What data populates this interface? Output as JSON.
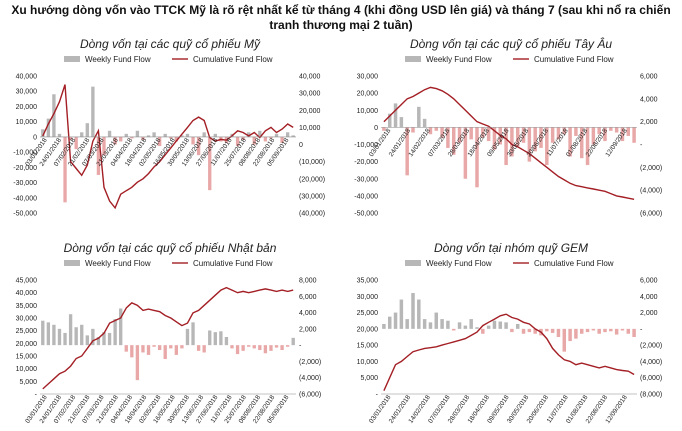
{
  "headline": {
    "line1": "Xu hướng dòng vốn vào TTCK Mỹ là rõ rệt nhất kể từ tháng 4 (khi đồng USD lên giá) và tháng 7 (sau khi nổ ra chiến",
    "line2": "tranh thương mại 2 tuần)"
  },
  "colors": {
    "bar": "#b7b7b7",
    "bar_neg": "#e9a8a8",
    "line": "#a31f25"
  },
  "legend": {
    "bar_label": "Weekly Fund Flow",
    "line_label": "Cumulative Fund Flow"
  },
  "chart_data": [
    {
      "type": "bar",
      "title": "Dòng vốn tại các quỹ cổ phiếu Mỹ",
      "left_ylim": [
        -50000,
        40000
      ],
      "left_ticks": [
        "40,000",
        "30,000",
        "20,000",
        "10,000",
        "0",
        "-10,000",
        "-20,000",
        "-30,000",
        "-40,000",
        "-50,000"
      ],
      "right_ylim": [
        -40000,
        40000
      ],
      "right_ticks": [
        "40,000",
        "30,000",
        "20,000",
        "10,000",
        "0",
        "(10,000)",
        "(20,000)",
        "(30,000)",
        "(40,000)"
      ],
      "x_labels": [
        "03/01/2018",
        "24/01/2018",
        "07/02/2018",
        "21/02/2018",
        "07/03/2018",
        "21/03/2018",
        "04/04/2018",
        "18/04/2018",
        "02/05/2018",
        "16/05/2018",
        "30/05/2018",
        "13/06/2018",
        "27/06/2018",
        "11/07/2018",
        "25/07/2018",
        "08/08/2018",
        "22/08/2018",
        "05/09/2018"
      ],
      "series": [
        {
          "name": "Weekly Fund Flow",
          "axis": "left",
          "values": [
            5000,
            12000,
            28000,
            2000,
            -43000,
            -2000,
            -8000,
            3000,
            9000,
            33000,
            -25000,
            -12000,
            4000,
            -5000,
            -3000,
            2000,
            -1000,
            4000,
            -2000,
            1000,
            3000,
            -6000,
            2000,
            -1000,
            -3000,
            1000,
            2000,
            -5000,
            -12000,
            3000,
            -35000,
            2000,
            -3000,
            -4000,
            2000,
            -6000,
            -2000,
            3000,
            -5000,
            4000,
            -3000,
            -1000,
            2000,
            -4000,
            3000,
            1000
          ]
        },
        {
          "name": "Cumulative Fund Flow",
          "axis": "right",
          "values": [
            5000,
            12000,
            18000,
            25000,
            35000,
            -10000,
            -14000,
            -18000,
            -12000,
            2000,
            8000,
            -25000,
            -33000,
            -37000,
            -29000,
            -27000,
            -25000,
            -22000,
            -20000,
            -17000,
            -13000,
            -10000,
            -6000,
            -2000,
            2000,
            6000,
            10000,
            14000,
            16000,
            14000,
            4000,
            2000,
            3000,
            2500,
            5000,
            8000,
            7000,
            5000,
            7000,
            4000,
            8000,
            10000,
            7000,
            9000,
            12000,
            10000
          ]
        }
      ]
    },
    {
      "type": "bar",
      "title": "Dòng vốn tại các quỹ cổ phiếu Tây Âu",
      "left_ylim": [
        -50000,
        30000
      ],
      "left_ticks": [
        "30,000",
        "20,000",
        "10,000",
        "0",
        "-10,000",
        "-20,000",
        "-30,000",
        "-40,000",
        "-50,000"
      ],
      "right_ylim": [
        -6000,
        6000
      ],
      "right_ticks": [
        "6,000",
        "4,000",
        "2,000",
        "-",
        "(2,000)",
        "(4,000)",
        "(6,000)"
      ],
      "x_labels": [
        "03/01/2018",
        "24/01/2018",
        "14/02/2018",
        "07/03/2018",
        "28/03/2018",
        "18/04/2018",
        "09/05/2018",
        "30/05/2018",
        "20/06/2018",
        "11/07/2018",
        "01/08/2018",
        "22/08/2018",
        "12/09/2018"
      ],
      "series": [
        {
          "name": "Weekly Fund Flow",
          "axis": "left",
          "values": [
            -2000,
            8000,
            14000,
            6000,
            -28000,
            -3000,
            12000,
            5000,
            -4000,
            -2000,
            -6000,
            -12000,
            -16000,
            -9000,
            -30000,
            -7000,
            -35000,
            -6000,
            -8000,
            -13000,
            -10000,
            -22000,
            -17000,
            -11000,
            -9000,
            -20000,
            -14000,
            -12000,
            -22000,
            -9000,
            -7000,
            -4000,
            -17000,
            -5000,
            -18000,
            -22000,
            -10000,
            -4000,
            -8000,
            -2000,
            -3000,
            -8000,
            -5000,
            -9000
          ]
        },
        {
          "name": "Cumulative Fund Flow",
          "axis": "right",
          "values": [
            2000,
            2500,
            3000,
            3500,
            4000,
            4200,
            4500,
            4800,
            5000,
            4900,
            4700,
            4400,
            4000,
            3500,
            3000,
            2500,
            2000,
            1800,
            1600,
            1200,
            800,
            500,
            0,
            -200,
            -500,
            -800,
            -1200,
            -1600,
            -2000,
            -2400,
            -2800,
            -3100,
            -3400,
            -3600,
            -3700,
            -3800,
            -3900,
            -4000,
            -4100,
            -4300,
            -4500,
            -4600,
            -4700,
            -4800
          ]
        }
      ]
    },
    {
      "type": "bar",
      "title": "Dòng vốn tại các quỹ cổ phiếu Nhật bản",
      "left_ylim": [
        0,
        45000
      ],
      "left_ticks": [
        "45,000",
        "40,000",
        "35,000",
        "30,000",
        "25,000",
        "20,000",
        "15,000",
        "10,000",
        "5,000",
        "-"
      ],
      "right_ylim": [
        -6000,
        8000
      ],
      "right_ticks": [
        "8,000",
        "6,000",
        "4,000",
        "2,000",
        "-",
        "(2,000)",
        "(4,000)",
        "(6,000)"
      ],
      "x_labels": [
        "03/01/2018",
        "24/01/2018",
        "07/02/2018",
        "21/02/2018",
        "07/03/2018",
        "21/03/2018",
        "04/04/2018",
        "18/04/2018",
        "02/05/2018",
        "16/05/2018",
        "30/05/2018",
        "13/06/2018",
        "27/06/2018",
        "11/07/2018",
        "25/07/2018",
        "08/08/2018",
        "22/08/2018",
        "05/09/2018"
      ],
      "series": [
        {
          "name": "Weekly Fund Flow",
          "axis": "right",
          "values": [
            3000,
            2800,
            2500,
            2000,
            1500,
            3800,
            2200,
            2500,
            1200,
            2000,
            1000,
            1600,
            1500,
            3200,
            4500,
            -800,
            -1500,
            -4300,
            -900,
            -1200,
            -200,
            -600,
            -1700,
            -400,
            -1200,
            -400,
            2000,
            2800,
            -700,
            -900,
            1800,
            1600,
            1700,
            1000,
            -400,
            -1100,
            -700,
            -200,
            -400,
            -600,
            -1000,
            -700,
            -300,
            -600,
            -200,
            900
          ]
        },
        {
          "name": "Cumulative Fund Flow",
          "axis": "left",
          "values": [
            2000,
            4000,
            6000,
            8000,
            9000,
            11000,
            14000,
            15000,
            18000,
            21000,
            22000,
            24000,
            28000,
            29000,
            30000,
            34000,
            36000,
            35000,
            33000,
            33500,
            33000,
            32500,
            31000,
            30000,
            28500,
            27000,
            28000,
            32000,
            33000,
            35000,
            37000,
            39000,
            41000,
            42000,
            41000,
            40000,
            40500,
            40000,
            40500,
            41000,
            41500,
            41000,
            40500,
            41000,
            40500,
            41000
          ]
        }
      ]
    },
    {
      "type": "bar",
      "title": "Dòng vốn tại nhóm quỹ GEM",
      "left_ylim": [
        0,
        35000
      ],
      "left_ticks": [
        "35,000",
        "30,000",
        "25,000",
        "20,000",
        "15,000",
        "10,000",
        "5,000",
        "-"
      ],
      "right_ylim": [
        -8000,
        6000
      ],
      "right_ticks": [
        "6,000",
        "4,000",
        "2,000",
        "-",
        "(2,000)",
        "(4,000)",
        "(6,000)",
        "(8,000)"
      ],
      "x_labels": [
        "03/01/2018",
        "24/01/2018",
        "14/02/2018",
        "07/03/2018",
        "28/03/2018",
        "18/04/2018",
        "09/05/2018",
        "30/05/2018",
        "20/06/2018",
        "11/07/2018",
        "01/08/2018",
        "22/08/2018",
        "12/09/2018"
      ],
      "series": [
        {
          "name": "Weekly Fund Flow",
          "axis": "right",
          "values": [
            600,
            1500,
            2000,
            3600,
            1200,
            4400,
            3600,
            1200,
            800,
            2000,
            1200,
            1000,
            -200,
            800,
            400,
            1200,
            200,
            -600,
            400,
            1000,
            900,
            800,
            -400,
            600,
            -600,
            -400,
            -600,
            -800,
            -300,
            -500,
            -1000,
            -2800,
            -1500,
            -1200,
            -600,
            -400,
            -200,
            -600,
            -400,
            -300,
            -700,
            -200,
            -600,
            -1000
          ]
        },
        {
          "name": "Cumulative Fund Flow",
          "axis": "left",
          "values": [
            1000,
            5000,
            9000,
            10000,
            11500,
            13000,
            13500,
            14000,
            14200,
            14500,
            15000,
            15500,
            16000,
            16500,
            17000,
            18000,
            19000,
            21000,
            22000,
            23000,
            24000,
            24500,
            23500,
            23000,
            22000,
            21500,
            20000,
            19000,
            17000,
            14000,
            12000,
            10500,
            10000,
            9000,
            9500,
            9000,
            8500,
            8000,
            8500,
            8000,
            7500,
            7200,
            7000,
            6000
          ]
        }
      ]
    }
  ]
}
